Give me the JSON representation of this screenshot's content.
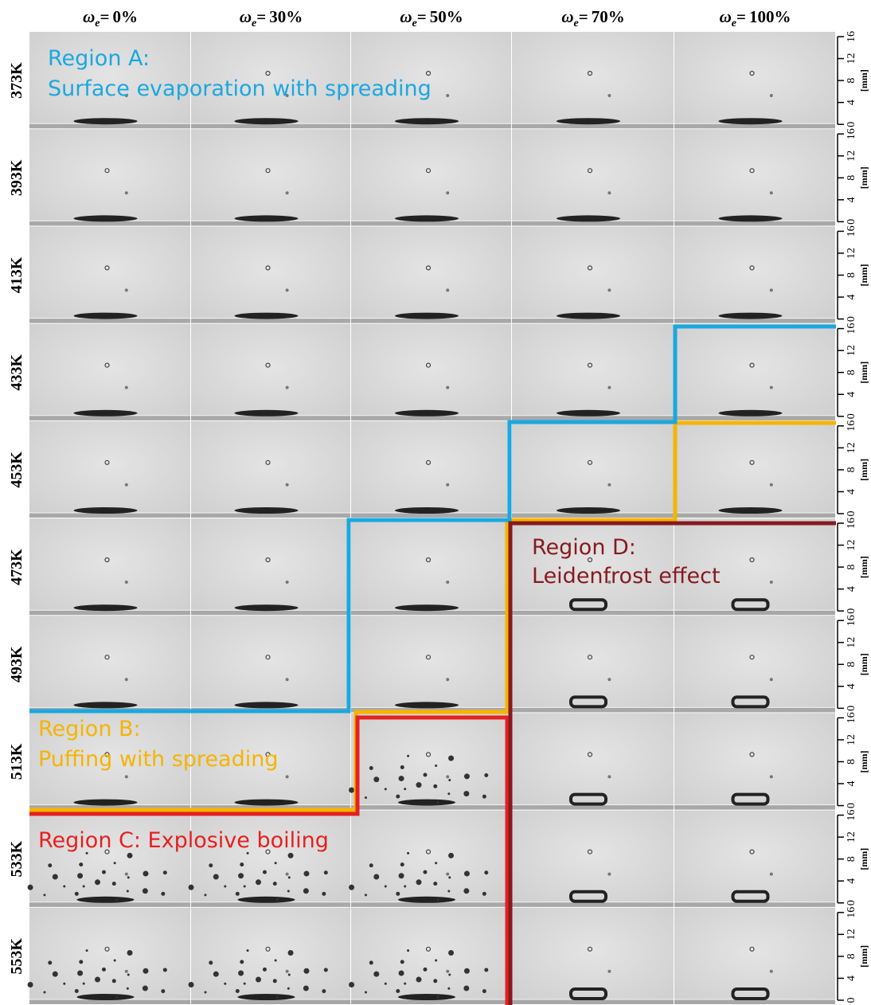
{
  "header": {
    "symbol": "ω",
    "subscript": "e",
    "equals": "=",
    "columns": [
      "0%",
      "30%",
      "50%",
      "70%",
      "100%"
    ]
  },
  "rows": [
    "373K",
    "393K",
    "413K",
    "433K",
    "453K",
    "473K",
    "493K",
    "513K",
    "533K",
    "553K"
  ],
  "scale": {
    "lim": [
      0,
      16
    ],
    "ticks": [
      0,
      4,
      8,
      12,
      16
    ],
    "unit": "[mm]"
  },
  "regions": [
    {
      "title": "Region A:",
      "text": "Surface evaporation with spreading",
      "color": "#1aa8e0"
    },
    {
      "title": "Region B:",
      "text": "Puffing with spreading",
      "color": "#f5b400"
    },
    {
      "title": "Region C: Explosive boiling",
      "color": "#e62020"
    },
    {
      "title": "Region D:",
      "text": "Leidenfrost effect",
      "color": "#861a1f"
    }
  ]
}
